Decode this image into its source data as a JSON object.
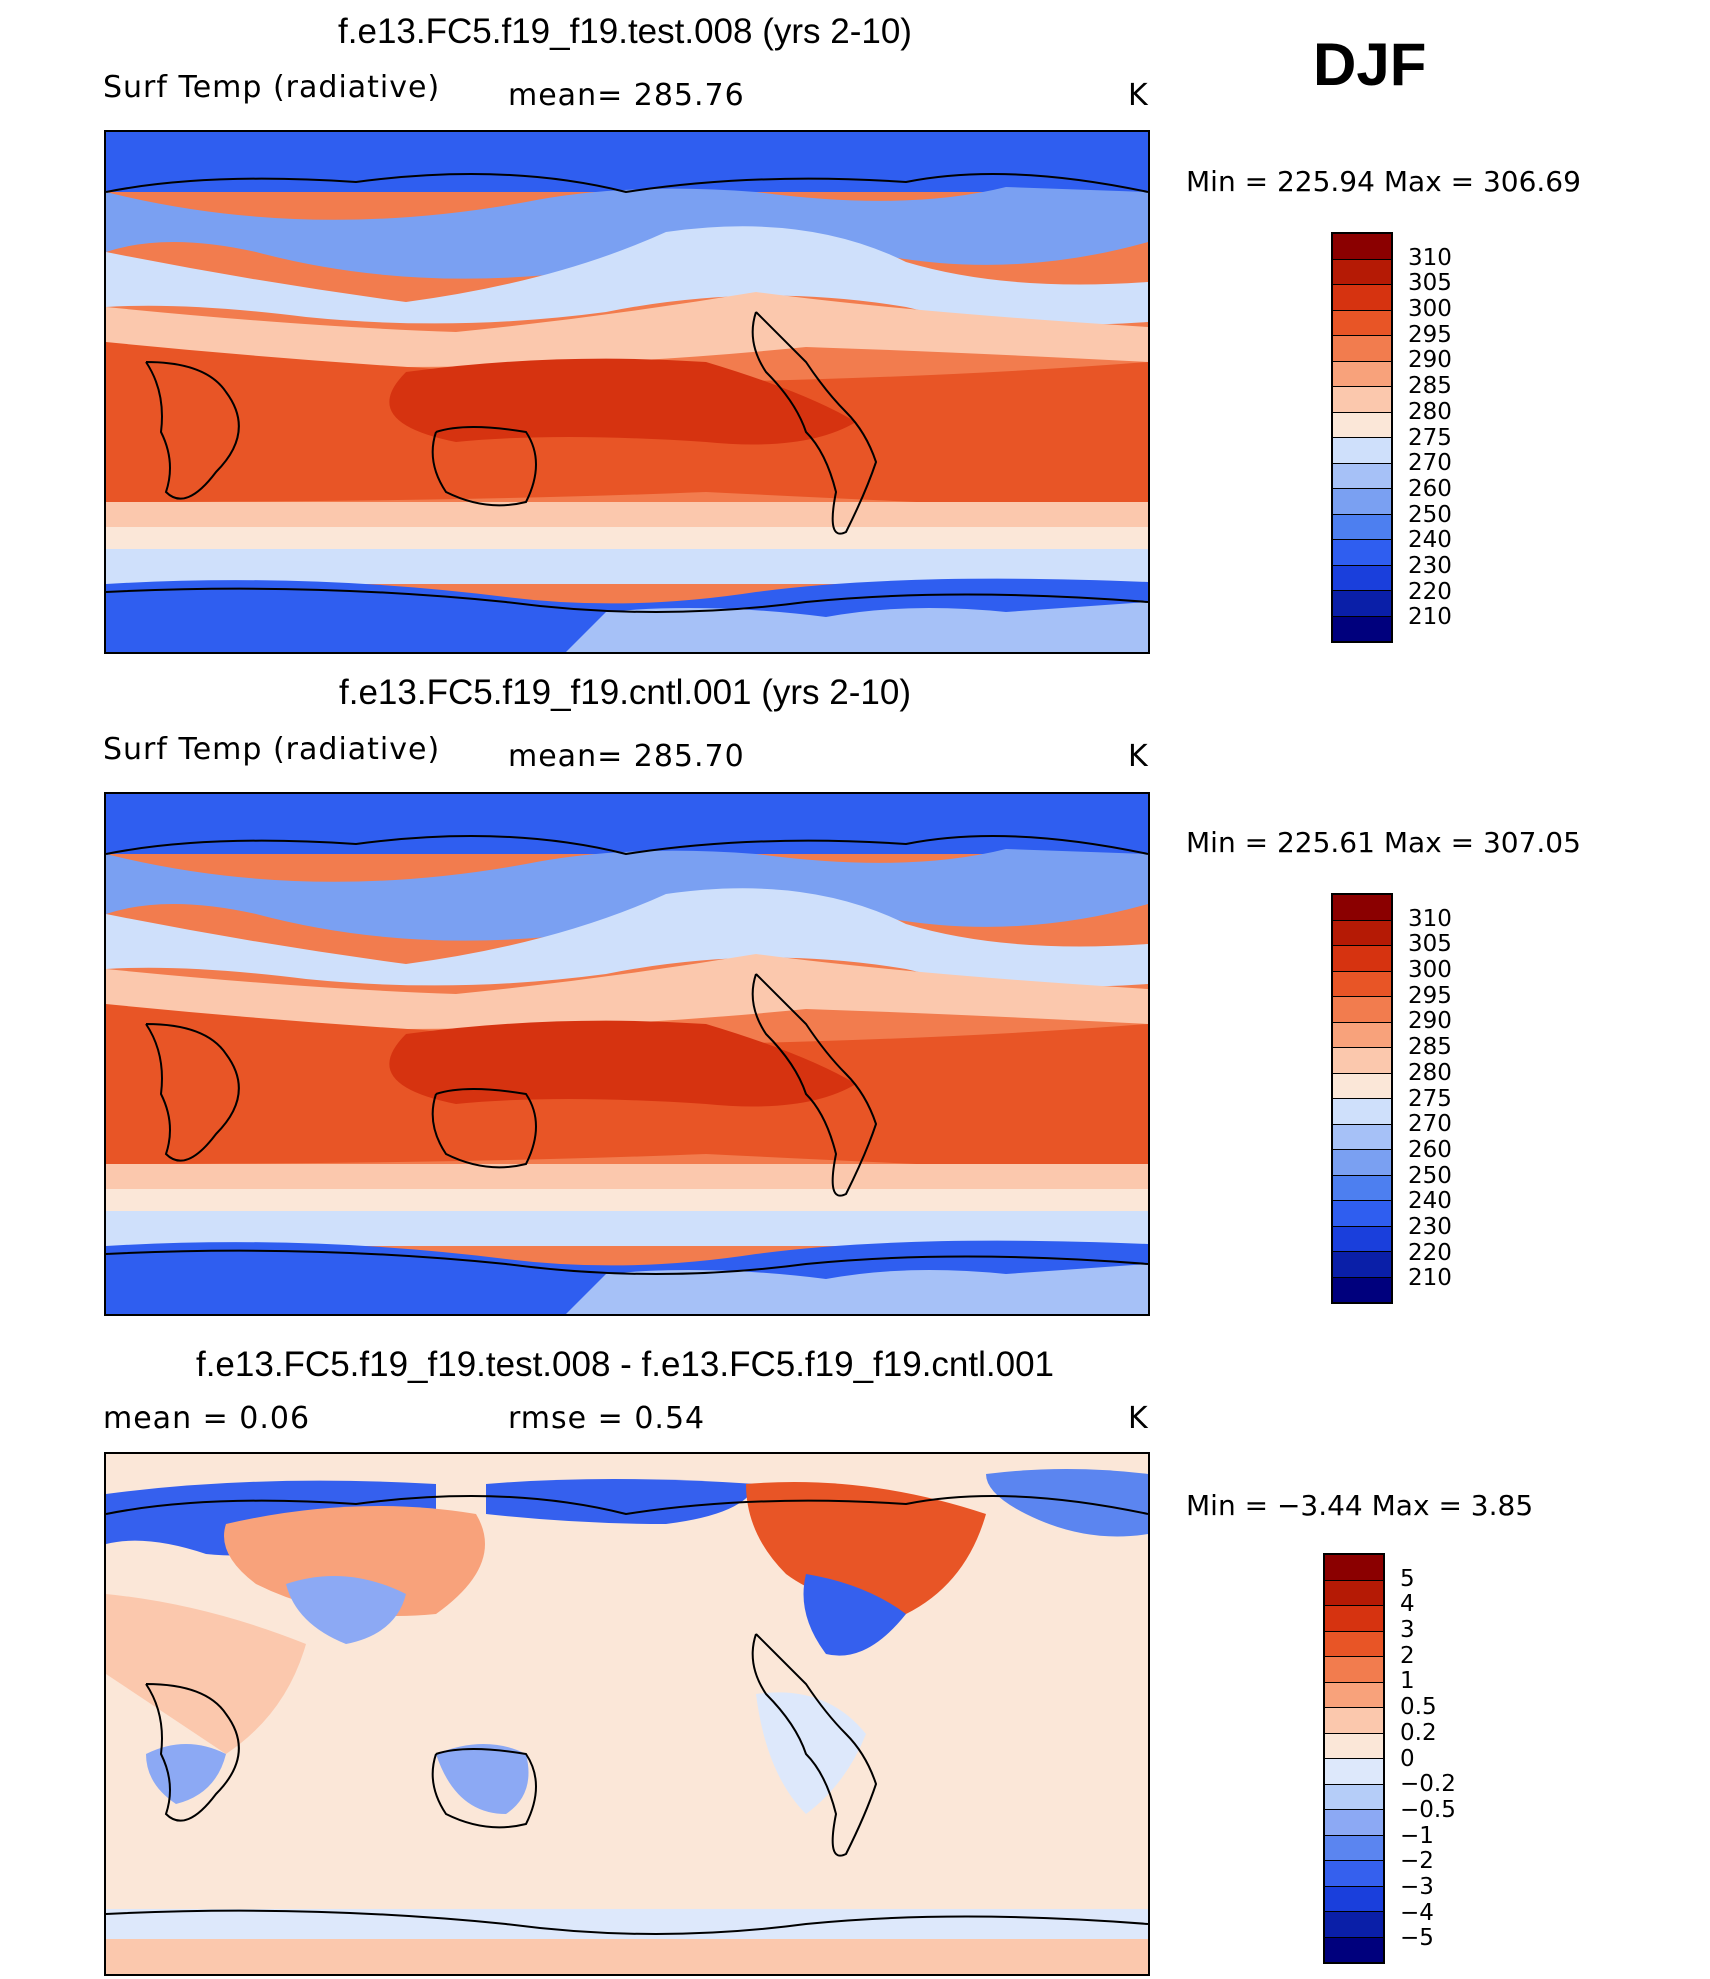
{
  "season": "DJF",
  "colors": {
    "temp": [
      "#00007d",
      "#0a1fa8",
      "#1a3fdc",
      "#2f5ef0",
      "#4d7ff0",
      "#7aa0f2",
      "#a6c1f7",
      "#cfe0fb",
      "#fbe7d8",
      "#fbc8ad",
      "#f8a27b",
      "#f27c4e",
      "#e85526",
      "#d63310",
      "#b51a05",
      "#8b0000"
    ],
    "diff": [
      "#00007d",
      "#0a1fa8",
      "#1a3fdc",
      "#3560ee",
      "#5b85f0",
      "#8ca9f4",
      "#b5cdf8",
      "#dde8fb",
      "#fbe7d8",
      "#fbc8ad",
      "#f8a27b",
      "#f27c4e",
      "#e85526",
      "#d63310",
      "#b51a05",
      "#8b0000"
    ]
  },
  "panels": [
    {
      "title": "f.e13.FC5.f19_f19.test.008 (yrs 2-10)",
      "left_label": "Surf Temp (radiative)",
      "center_label": "mean=  285.76",
      "right_label": "K",
      "min_max": "Min  =  225.94  Max  =  306.69",
      "colorbar_labels": [
        "310",
        "305",
        "300",
        "295",
        "290",
        "285",
        "280",
        "275",
        "270",
        "260",
        "250",
        "240",
        "230",
        "220",
        "210"
      ]
    },
    {
      "title": "f.e13.FC5.f19_f19.cntl.001 (yrs 2-10)",
      "left_label": "Surf Temp (radiative)",
      "center_label": "mean=  285.70",
      "right_label": "K",
      "min_max": "Min  =  225.61  Max  =  307.05",
      "colorbar_labels": [
        "310",
        "305",
        "300",
        "295",
        "290",
        "285",
        "280",
        "275",
        "270",
        "260",
        "250",
        "240",
        "230",
        "220",
        "210"
      ]
    },
    {
      "title": "f.e13.FC5.f19_f19.test.008 - f.e13.FC5.f19_f19.cntl.001",
      "left_label": "mean  =      0.06",
      "center_label": "rmse  =      0.54",
      "right_label": "K",
      "min_max": "Min  =     −3.44  Max  =      3.85",
      "colorbar_labels": [
        "5",
        "4",
        "3",
        "2",
        "1",
        "0.5",
        "0.2",
        "0",
        "−0.2",
        "−0.5",
        "−1",
        "−2",
        "−3",
        "−4",
        "−5"
      ]
    }
  ],
  "chart_data": [
    {
      "type": "heatmap",
      "title": "f.e13.FC5.f19_f19.test.008 (yrs 2-10)",
      "variable": "Surf Temp (radiative)",
      "units": "K",
      "mean": 285.76,
      "min": 225.94,
      "max": 306.69,
      "contour_levels": [
        210,
        220,
        230,
        240,
        250,
        260,
        270,
        275,
        280,
        285,
        290,
        295,
        300,
        305,
        310
      ]
    },
    {
      "type": "heatmap",
      "title": "f.e13.FC5.f19_f19.cntl.001 (yrs 2-10)",
      "variable": "Surf Temp (radiative)",
      "units": "K",
      "mean": 285.7,
      "min": 225.61,
      "max": 307.05,
      "contour_levels": [
        210,
        220,
        230,
        240,
        250,
        260,
        270,
        275,
        280,
        285,
        290,
        295,
        300,
        305,
        310
      ]
    },
    {
      "type": "heatmap",
      "title": "f.e13.FC5.f19_f19.test.008 - f.e13.FC5.f19_f19.cntl.001",
      "units": "K",
      "mean": 0.06,
      "rmse": 0.54,
      "min": -3.44,
      "max": 3.85,
      "contour_levels": [
        -5,
        -4,
        -3,
        -2,
        -1,
        -0.5,
        -0.2,
        0,
        0.2,
        0.5,
        1,
        2,
        3,
        4,
        5
      ]
    }
  ]
}
